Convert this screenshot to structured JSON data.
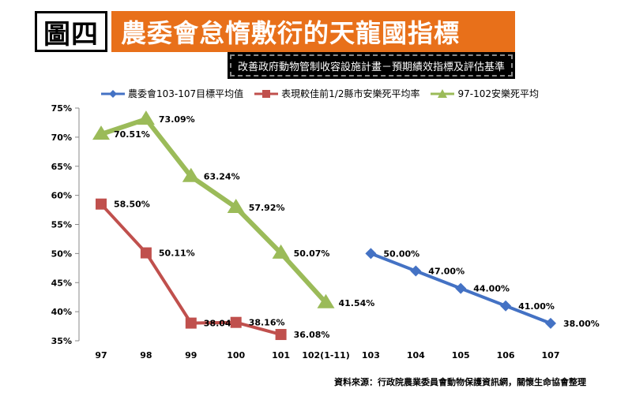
{
  "header": {
    "tag": "圖四",
    "title": "農委會怠惰敷衍的天龍國指標",
    "subtitle": "改善政府動物管制收容設施計畫－預期績效指標及評估基準"
  },
  "source": "資料來源：行政院農業委員會動物保護資訊網，關懷生命協會整理",
  "colors": {
    "blue": "#4472C4",
    "red": "#C0504D",
    "green": "#9BBB59",
    "title_bg": "#E8701A"
  },
  "chart_data": {
    "type": "line",
    "title": "農委會怠惰敷衍的天龍國指標",
    "subtitle": "改善政府動物管制收容設施計畫－預期績效指標及評估基準",
    "xlabel": "",
    "ylabel": "",
    "categories": [
      "97",
      "98",
      "99",
      "100",
      "101",
      "102(1-11)",
      "103",
      "104",
      "105",
      "106",
      "107"
    ],
    "ylim": [
      35,
      75
    ],
    "yticks": [
      "35%",
      "40%",
      "45%",
      "50%",
      "55%",
      "60%",
      "65%",
      "70%",
      "75%"
    ],
    "grid": false,
    "legend_position": "top",
    "series": [
      {
        "name": "農委會103-107目標平均值",
        "color": "#4472C4",
        "marker": "diamond",
        "x": [
          "103",
          "104",
          "105",
          "106",
          "107"
        ],
        "values": [
          50.0,
          47.0,
          44.0,
          41.0,
          38.0
        ],
        "labels": [
          "50.00%",
          "47.00%",
          "44.00%",
          "41.00%",
          "38.00%"
        ]
      },
      {
        "name": "表現較佳前1/2縣市安樂死平均率",
        "color": "#C0504D",
        "marker": "square",
        "x": [
          "97",
          "98",
          "99",
          "100",
          "101"
        ],
        "values": [
          58.5,
          50.11,
          38.04,
          38.16,
          36.08
        ],
        "labels": [
          "58.50%",
          "50.11%",
          "38.04%",
          "38.16%",
          "36.08%"
        ]
      },
      {
        "name": "97-102安樂死平均",
        "color": "#9BBB59",
        "marker": "triangle",
        "x": [
          "97",
          "98",
          "99",
          "100",
          "101",
          "102(1-11)"
        ],
        "values": [
          70.51,
          73.09,
          63.24,
          57.92,
          50.07,
          41.54
        ],
        "labels": [
          "70.51%",
          "73.09%",
          "63.24%",
          "57.92%",
          "50.07%",
          "41.54%"
        ]
      }
    ]
  }
}
